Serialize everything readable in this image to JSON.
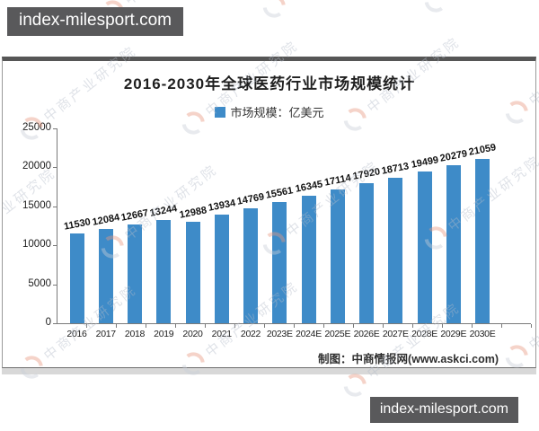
{
  "site_banner": {
    "top_left": "index-milesport.com",
    "bottom_right": "index-milesport.com"
  },
  "watermark": {
    "brand_text": "中商产业研究院",
    "text_color": "#b4bcc9",
    "logo_arc_red": "#e8997f",
    "logo_arc_gray": "#c9cfd8"
  },
  "chart_data": {
    "type": "bar",
    "title": "2016-2030年全球医药行业市场规模统计",
    "legend": [
      {
        "label": "市场规模：亿美元",
        "color": "#3e8bc8"
      }
    ],
    "legend_position": "top",
    "categories": [
      "2016",
      "2017",
      "2018",
      "2019",
      "2020",
      "2021",
      "2022",
      "2023E",
      "2024E",
      "2025E",
      "2026E",
      "2027E",
      "2028E",
      "2029E",
      "2030E"
    ],
    "values": [
      11530,
      12084,
      12667,
      13244,
      12988,
      13934,
      14769,
      15561,
      16345,
      17114,
      17920,
      18713,
      19499,
      20279,
      21059
    ],
    "xlabel": "",
    "ylabel": "",
    "ylim": [
      0,
      25000
    ],
    "yticks": [
      0,
      5000,
      10000,
      15000,
      20000,
      25000
    ],
    "bar_color": "#3e8bc8",
    "grid": false,
    "credit": "制图：中商情报网(www.askci.com)"
  }
}
